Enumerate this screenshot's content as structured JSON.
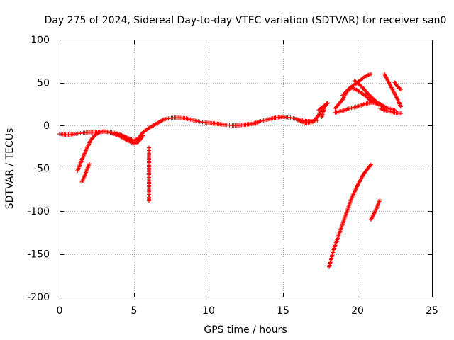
{
  "chart_data": {
    "type": "scatter",
    "title": "Day 275 of 2024, Sidereal Day-to-day VTEC variation (SDTVAR) for receiver san0",
    "xlabel": "GPS time / hours",
    "ylabel": "SDTVAR / TECUs",
    "xlim": [
      0,
      25
    ],
    "ylim": [
      -200,
      100
    ],
    "xticks": [
      0,
      5,
      10,
      15,
      20,
      25
    ],
    "yticks": [
      -200,
      -150,
      -100,
      -50,
      0,
      50,
      100
    ],
    "xtick_labels": [
      "0",
      "5",
      "10",
      "15",
      "20",
      "25"
    ],
    "ytick_labels": [
      "-200",
      "-150",
      "-100",
      "-50",
      "0",
      "50",
      "100"
    ],
    "grid": true,
    "marker": "+",
    "series_color": "#ff0000",
    "series": [
      {
        "name": "main-trace",
        "points": [
          [
            0,
            -10
          ],
          [
            0.5,
            -11
          ],
          [
            1,
            -10
          ],
          [
            1.5,
            -9
          ],
          [
            2,
            -8
          ],
          [
            2.5,
            -8
          ],
          [
            3,
            -7
          ],
          [
            3.5,
            -8
          ],
          [
            4,
            -10
          ],
          [
            4.5,
            -14
          ],
          [
            5,
            -18
          ],
          [
            5.3,
            -15
          ],
          [
            5.6,
            -8
          ],
          [
            6,
            -3
          ],
          [
            6.3,
            0
          ],
          [
            6.7,
            4
          ],
          [
            7,
            7
          ],
          [
            7.3,
            8
          ],
          [
            7.7,
            9
          ],
          [
            8,
            9
          ],
          [
            8.5,
            8
          ],
          [
            9,
            6
          ],
          [
            9.5,
            4
          ],
          [
            10,
            3
          ],
          [
            10.5,
            2
          ],
          [
            11,
            1
          ],
          [
            11.5,
            0
          ],
          [
            12,
            0
          ],
          [
            12.5,
            1
          ],
          [
            13,
            2
          ],
          [
            13.5,
            5
          ],
          [
            14,
            7
          ],
          [
            14.5,
            9
          ],
          [
            15,
            10
          ],
          [
            15.5,
            9
          ],
          [
            16,
            7
          ],
          [
            16.5,
            5
          ],
          [
            17,
            5
          ],
          [
            17.3,
            6
          ]
        ]
      },
      {
        "name": "dip-around-5h",
        "points": [
          [
            3,
            -7
          ],
          [
            3.5,
            -9
          ],
          [
            4,
            -12
          ],
          [
            4.5,
            -17
          ],
          [
            5,
            -21
          ],
          [
            5.3,
            -19
          ],
          [
            5.6,
            -12
          ]
        ]
      },
      {
        "name": "steep-segment-1h",
        "points": [
          [
            1.2,
            -53
          ],
          [
            1.5,
            -40
          ],
          [
            1.8,
            -28
          ],
          [
            2.1,
            -17
          ],
          [
            2.4,
            -11
          ],
          [
            2.7,
            -8
          ],
          [
            3,
            -7
          ]
        ]
      },
      {
        "name": "short-segment-1.5h",
        "points": [
          [
            1.5,
            -66
          ],
          [
            1.7,
            -58
          ],
          [
            1.9,
            -49
          ],
          [
            2.0,
            -45
          ]
        ]
      },
      {
        "name": "isolated-6h",
        "points": [
          [
            6.0,
            -26
          ],
          [
            6.0,
            -52
          ],
          [
            6.0,
            -86
          ],
          [
            6.0,
            -88
          ]
        ]
      },
      {
        "name": "bump-16.5h",
        "points": [
          [
            16.0,
            6
          ],
          [
            16.5,
            3
          ],
          [
            17.0,
            4
          ],
          [
            17.2,
            8
          ],
          [
            17.4,
            12
          ],
          [
            17.5,
            16
          ]
        ]
      },
      {
        "name": "cluster-17.5-18h",
        "points": [
          [
            17.6,
            10
          ],
          [
            17.7,
            16
          ],
          [
            17.8,
            22
          ],
          [
            17.9,
            25
          ],
          [
            18.0,
            26
          ],
          [
            17.4,
            18
          ],
          [
            17.6,
            19
          ]
        ]
      },
      {
        "name": "upper-band-a",
        "points": [
          [
            18.5,
            20
          ],
          [
            19,
            30
          ],
          [
            19.3,
            40
          ],
          [
            19.6,
            44
          ],
          [
            20,
            41
          ],
          [
            20.5,
            35
          ],
          [
            21,
            27
          ]
        ]
      },
      {
        "name": "upper-band-b",
        "points": [
          [
            18.5,
            15
          ],
          [
            19,
            17
          ],
          [
            19.5,
            20
          ],
          [
            20,
            22
          ],
          [
            20.5,
            25
          ],
          [
            21,
            27
          ],
          [
            21.5,
            24
          ],
          [
            22,
            20
          ],
          [
            22.5,
            18
          ]
        ]
      },
      {
        "name": "upper-band-c",
        "points": [
          [
            19,
            35
          ],
          [
            19.5,
            44
          ],
          [
            20,
            50
          ],
          [
            20.5,
            57
          ],
          [
            20.9,
            60
          ]
        ]
      },
      {
        "name": "upper-band-d",
        "points": [
          [
            19.8,
            52
          ],
          [
            20.3,
            45
          ],
          [
            20.8,
            35
          ],
          [
            21.3,
            27
          ],
          [
            21.8,
            22
          ]
        ]
      },
      {
        "name": "right-line-22h",
        "points": [
          [
            21.8,
            60
          ],
          [
            22.1,
            50
          ],
          [
            22.4,
            40
          ],
          [
            22.7,
            30
          ],
          [
            22.9,
            22
          ]
        ]
      },
      {
        "name": "right-short-22.5h",
        "points": [
          [
            22.5,
            50
          ],
          [
            22.7,
            45
          ],
          [
            22.9,
            42
          ]
        ]
      },
      {
        "name": "right-lower-22h",
        "points": [
          [
            21.5,
            20
          ],
          [
            22,
            17
          ],
          [
            22.5,
            15
          ],
          [
            22.9,
            14
          ]
        ]
      },
      {
        "name": "deep-segment-18h",
        "points": [
          [
            18.1,
            -165
          ],
          [
            18.4,
            -145
          ],
          [
            18.8,
            -125
          ],
          [
            19.2,
            -105
          ],
          [
            19.6,
            -85
          ],
          [
            20.0,
            -70
          ],
          [
            20.4,
            -57
          ],
          [
            20.8,
            -48
          ],
          [
            20.9,
            -46
          ]
        ]
      },
      {
        "name": "deep-short-21h",
        "points": [
          [
            20.9,
            -110
          ],
          [
            21.2,
            -100
          ],
          [
            21.5,
            -87
          ]
        ]
      }
    ]
  }
}
